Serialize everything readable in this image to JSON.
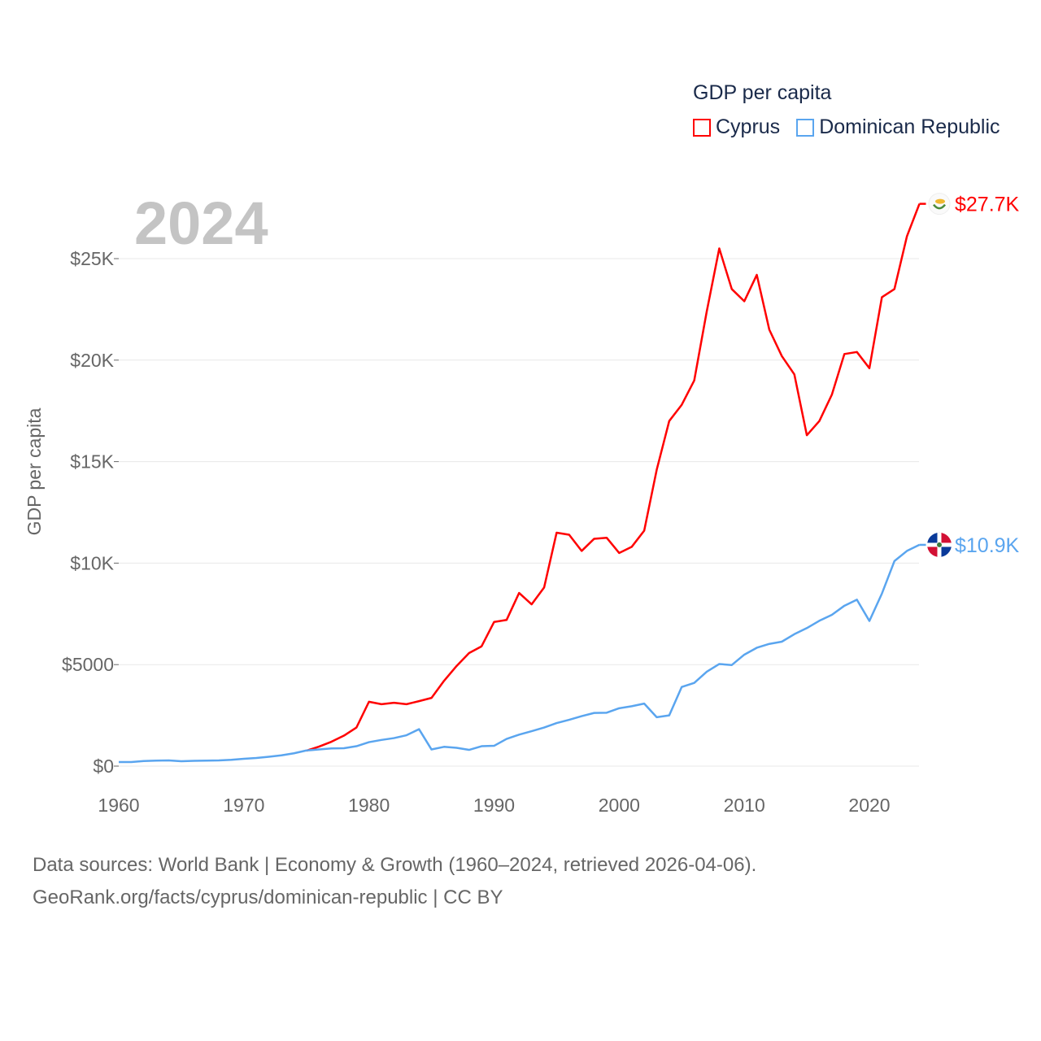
{
  "chart_data": {
    "type": "line",
    "title": "GDP per capita",
    "ylabel": "GDP per capita",
    "xlabel": "",
    "year_label": "2024",
    "xlim": [
      1960,
      2024
    ],
    "ylim": [
      0,
      28000
    ],
    "x_ticks": [
      "1960",
      "1970",
      "1980",
      "1990",
      "2000",
      "2010",
      "2020"
    ],
    "y_ticks": [
      {
        "v": 0,
        "label": "$0"
      },
      {
        "v": 5000,
        "label": "$5000"
      },
      {
        "v": 10000,
        "label": "$10K"
      },
      {
        "v": 15000,
        "label": "$15K"
      },
      {
        "v": 20000,
        "label": "$20K"
      },
      {
        "v": 25000,
        "label": "$25K"
      }
    ],
    "grid": true,
    "legend_placement": "top-right",
    "series": [
      {
        "name": "Cyprus",
        "color": "#ff0000",
        "end_label": "$27.7K",
        "flag": "cyprus-flag",
        "start_year": 1975,
        "values": [
          760,
          960,
          1200,
          1500,
          1900,
          3170,
          3050,
          3120,
          3050,
          3200,
          3360,
          4200,
          4930,
          5570,
          5900,
          7100,
          7200,
          8530,
          7970,
          8800,
          11500,
          11400,
          10600,
          11200,
          11250,
          10500,
          10800,
          11600,
          14600,
          17000,
          17800,
          19000,
          22400,
          25500,
          23500,
          22900,
          24200,
          21500,
          20200,
          19300,
          16300,
          17000,
          18300,
          20300,
          20400,
          19600,
          23100,
          23500,
          26100,
          27700
        ]
      },
      {
        "name": "Dominican Republic",
        "color": "#5aa5ef",
        "end_label": "$10.9K",
        "flag": "dominican-republic-flag",
        "start_year": 1960,
        "values": [
          200,
          200,
          250,
          270,
          280,
          240,
          260,
          270,
          280,
          310,
          360,
          400,
          460,
          530,
          630,
          770,
          820,
          870,
          880,
          980,
          1180,
          1290,
          1380,
          1520,
          1820,
          820,
          950,
          900,
          800,
          980,
          1000,
          1340,
          1550,
          1720,
          1900,
          2120,
          2280,
          2460,
          2620,
          2630,
          2850,
          2950,
          3080,
          2410,
          2500,
          3900,
          4100,
          4650,
          5030,
          4980,
          5490,
          5830,
          6020,
          6130,
          6500,
          6800,
          7160,
          7450,
          7900,
          8200,
          7150,
          8500,
          10100,
          10600,
          10900
        ]
      }
    ]
  },
  "legend": {
    "title": "GDP per capita",
    "items": [
      "Cyprus",
      "Dominican Republic"
    ]
  },
  "footer": {
    "line1": "Data sources: World Bank | Economy & Growth (1960–2024, retrieved 2026-04-06).",
    "line2": "GeoRank.org/facts/cyprus/dominican-republic | CC BY"
  }
}
